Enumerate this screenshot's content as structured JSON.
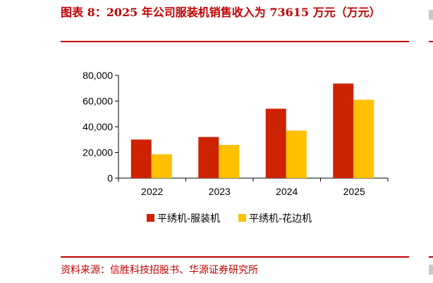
{
  "header": {
    "title": "图表 8：2025 年公司服装机销售收入为 73615 万元（万元）"
  },
  "footer": {
    "source": "资料来源：信胜科技招股书、华源证券研究所"
  },
  "colors": {
    "accent": "#c00000",
    "series1": "#cc2200",
    "series2": "#ffc000"
  },
  "chart_data": {
    "type": "bar",
    "title": "",
    "xlabel": "",
    "ylabel": "",
    "categories": [
      "2022",
      "2023",
      "2024",
      "2025"
    ],
    "series": [
      {
        "name": "平绣机-服装机",
        "values": [
          30000,
          32000,
          54000,
          73615
        ]
      },
      {
        "name": "平绣机-花边机",
        "values": [
          18500,
          25800,
          37000,
          61000
        ]
      }
    ],
    "ylim": [
      0,
      80000
    ],
    "yticks": [
      0,
      20000,
      40000,
      60000,
      80000
    ],
    "ytick_labels": [
      "0",
      "20,000",
      "40,000",
      "60,000",
      "80,000"
    ],
    "grid": false,
    "legend_position": "bottom"
  }
}
